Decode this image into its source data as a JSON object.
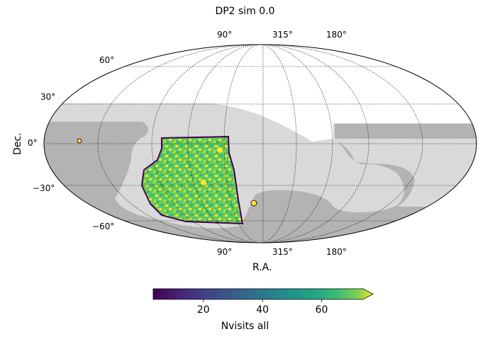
{
  "chart_data": {
    "type": "heatmap",
    "projection": "mollweide",
    "title": "DP2 sim 0.0",
    "xlabel": "R.A.",
    "ylabel": "Dec.",
    "ra_tick_labels": [
      "90°",
      "315°",
      "180°"
    ],
    "dec_ticks": [
      {
        "value": 60,
        "label": "60°"
      },
      {
        "value": 30,
        "label": "30°"
      },
      {
        "value": 0,
        "label": "0°"
      },
      {
        "value": -30,
        "label": "−30°"
      },
      {
        "value": -60,
        "label": "−60°"
      }
    ],
    "colorbar": {
      "label": "Nvisits all",
      "colormap": "viridis",
      "ticks": [
        20,
        40,
        60
      ],
      "range": [
        3,
        74
      ],
      "extend": "max"
    },
    "grid": true,
    "colors": {
      "footprint": "#b3b3b3",
      "footprint_light": "#d9d9d9",
      "edge": "#440154"
    }
  }
}
